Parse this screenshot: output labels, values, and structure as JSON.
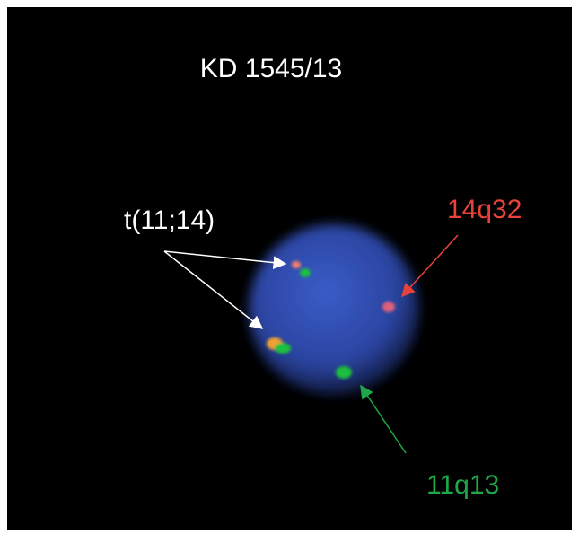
{
  "title": "KD 1545/13",
  "labels": {
    "translocation": "t(11;14)",
    "red_probe": "14q32",
    "green_probe": "11q13"
  }
}
